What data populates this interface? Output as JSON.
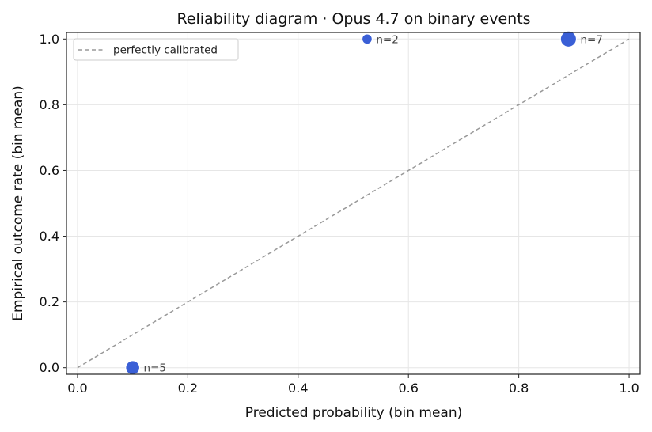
{
  "chart_data": {
    "type": "scatter",
    "title": "Reliability diagram · Opus 4.7 on binary events",
    "xlabel": "Predicted probability (bin mean)",
    "ylabel": "Empirical outcome rate (bin mean)",
    "xlim": [
      -0.02,
      1.02
    ],
    "ylim": [
      -0.02,
      1.02
    ],
    "xticks": [
      "0.0",
      "0.2",
      "0.4",
      "0.6",
      "0.8",
      "1.0"
    ],
    "yticks": [
      "0.0",
      "0.2",
      "0.4",
      "0.6",
      "0.8",
      "1.0"
    ],
    "grid": true,
    "legend": {
      "position": "top-left",
      "entries": [
        "perfectly calibrated"
      ]
    },
    "reference_line": {
      "name": "perfectly calibrated",
      "x": [
        0,
        1
      ],
      "y": [
        0,
        1
      ],
      "color": "#999999",
      "style": "dashed"
    },
    "points": [
      {
        "x": 0.1,
        "y": 0.0,
        "n": 5,
        "label": "n=5"
      },
      {
        "x": 0.525,
        "y": 1.0,
        "n": 2,
        "label": "n=2"
      },
      {
        "x": 0.89,
        "y": 1.0,
        "n": 7,
        "label": "n=7"
      }
    ],
    "point_color": "#3a5fd6"
  }
}
